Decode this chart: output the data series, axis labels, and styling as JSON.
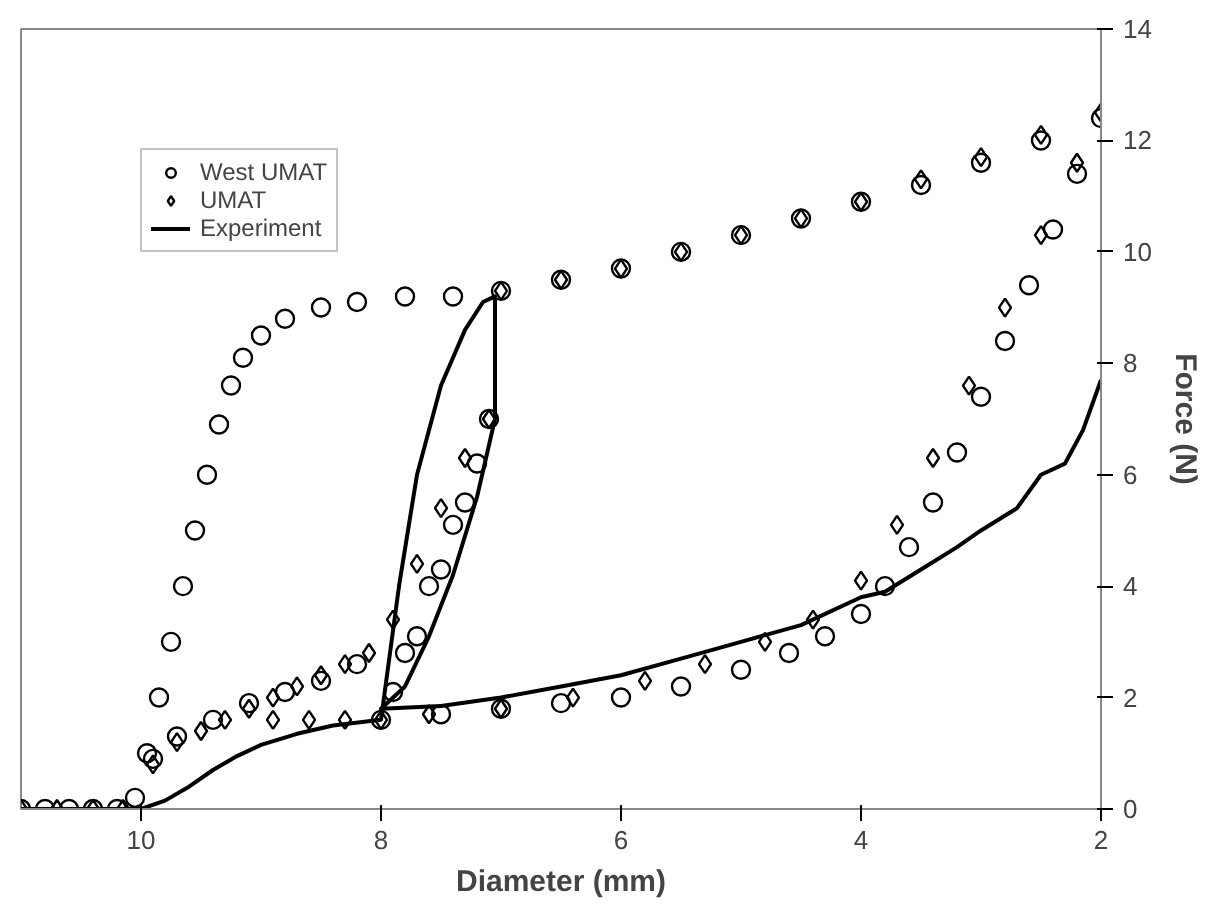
{
  "chart_data": {
    "type": "line",
    "xlabel": "Diameter (mm)",
    "ylabel": "Force (N)",
    "xlim": [
      11,
      2
    ],
    "xticks": [
      10,
      8,
      6,
      4,
      2
    ],
    "ylim": [
      0,
      14
    ],
    "yticks": [
      0,
      2,
      4,
      6,
      8,
      10,
      12,
      14
    ],
    "grid": false,
    "legend": "top left",
    "series": [
      {
        "name": "West UMAT",
        "type": "scatter",
        "marker": "circle",
        "color": "#000000",
        "x": [
          11,
          10.8,
          10.6,
          10.4,
          10.2,
          10.05,
          9.95,
          9.85,
          9.75,
          9.65,
          9.55,
          9.45,
          9.35,
          9.25,
          9.15,
          9.0,
          8.8,
          8.5,
          8.2,
          7.8,
          7.4,
          7.0,
          6.5,
          6.0,
          5.5,
          5.0,
          4.5,
          4.0,
          3.5,
          3.0,
          2.5,
          2.0,
          2.2,
          2.4,
          2.6,
          2.8,
          3.0,
          3.2,
          3.4,
          3.6,
          3.8,
          4.0,
          4.3,
          4.6,
          5.0,
          5.5,
          6.0,
          6.5,
          7.0,
          7.5,
          8.0,
          7.8,
          7.6,
          7.4,
          7.2,
          7.1,
          7.3,
          7.5,
          7.7,
          7.9,
          9.9,
          9.7,
          9.4,
          9.1,
          8.8,
          8.5,
          8.2
        ],
        "values": [
          0,
          0,
          0,
          0,
          0,
          0.2,
          1.0,
          2.0,
          3.0,
          4.0,
          5.0,
          6.0,
          6.9,
          7.6,
          8.1,
          8.5,
          8.8,
          9.0,
          9.1,
          9.2,
          9.2,
          9.3,
          9.5,
          9.7,
          10.0,
          10.3,
          10.6,
          10.9,
          11.2,
          11.6,
          12.0,
          12.4,
          11.4,
          10.4,
          9.4,
          8.4,
          7.4,
          6.4,
          5.5,
          4.7,
          4.0,
          3.5,
          3.1,
          2.8,
          2.5,
          2.2,
          2.0,
          1.9,
          1.8,
          1.7,
          1.6,
          2.8,
          4.0,
          5.1,
          6.2,
          7.0,
          5.5,
          4.3,
          3.1,
          2.1,
          0.9,
          1.3,
          1.6,
          1.9,
          2.1,
          2.3,
          2.6
        ]
      },
      {
        "name": "UMAT",
        "type": "scatter",
        "marker": "diamond",
        "color": "#000000",
        "x": [
          11,
          10.7,
          10.4,
          10.15,
          9.9,
          9.7,
          9.5,
          9.3,
          9.1,
          8.9,
          8.7,
          8.5,
          8.3,
          8.1,
          7.9,
          7.7,
          7.5,
          7.3,
          7.1,
          7.0,
          6.5,
          6.0,
          5.5,
          5.0,
          4.5,
          4.0,
          3.5,
          3.0,
          2.5,
          2.0,
          2.2,
          2.5,
          2.8,
          3.1,
          3.4,
          3.7,
          4.0,
          4.4,
          4.8,
          5.3,
          5.8,
          6.4,
          7.0,
          7.6,
          8.0,
          8.3,
          8.6,
          8.9
        ],
        "values": [
          0,
          0,
          0,
          0,
          0.8,
          1.2,
          1.4,
          1.6,
          1.8,
          2.0,
          2.2,
          2.4,
          2.6,
          2.8,
          3.4,
          4.4,
          5.4,
          6.3,
          7.0,
          9.3,
          9.5,
          9.7,
          10.0,
          10.3,
          10.6,
          10.9,
          11.3,
          11.7,
          12.1,
          12.5,
          11.6,
          10.3,
          9.0,
          7.6,
          6.3,
          5.1,
          4.1,
          3.4,
          3.0,
          2.6,
          2.3,
          2.0,
          1.8,
          1.7,
          1.6,
          1.6,
          1.6,
          1.6
        ]
      },
      {
        "name": "Experiment",
        "marker": "none",
        "line_style": "solid",
        "color": "#000000",
        "x": [
          11,
          10.5,
          10.0,
          9.8,
          9.6,
          9.4,
          9.2,
          9.0,
          8.7,
          8.4,
          8.0,
          7.85,
          7.7,
          7.5,
          7.3,
          7.15,
          7.05,
          7.05,
          7.2,
          7.4,
          7.6,
          7.8,
          8.0,
          7.5,
          7.0,
          6.5,
          6.0,
          5.5,
          5.0,
          4.5,
          4.0,
          3.8,
          3.5,
          3.2,
          3.0,
          2.7,
          2.5,
          2.3,
          2.15,
          2.0
        ],
        "values": [
          0,
          0,
          0,
          0.15,
          0.4,
          0.7,
          0.95,
          1.15,
          1.35,
          1.5,
          1.6,
          4.0,
          6.0,
          7.6,
          8.6,
          9.1,
          9.2,
          7.0,
          5.6,
          4.2,
          3.1,
          2.2,
          1.8,
          1.85,
          2.0,
          2.2,
          2.4,
          2.7,
          3.0,
          3.3,
          3.8,
          3.9,
          4.3,
          4.7,
          5.0,
          5.4,
          6.0,
          6.2,
          6.8,
          7.7
        ]
      }
    ]
  }
}
